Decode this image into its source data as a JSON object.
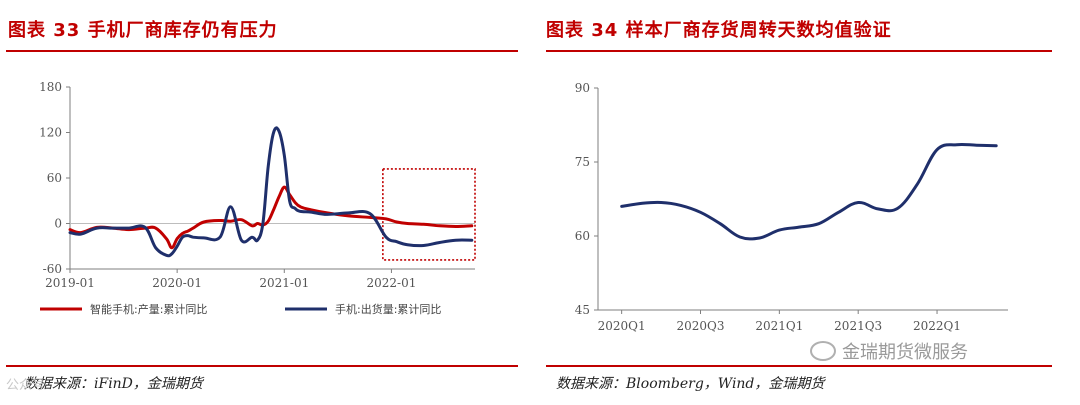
{
  "panels": {
    "left": {
      "title": "图表 33 手机厂商库存仍有压力",
      "source": "数据来源：iFinD，金瑞期货"
    },
    "right": {
      "title": "图表 34 样本厂商存货周转天数均值验证",
      "source": "数据来源：Bloomberg，Wind，金瑞期货"
    }
  },
  "watermark": {
    "text": "金瑞期货微服务",
    "left_text": "公众号"
  },
  "colors": {
    "red": "#c00000",
    "navy": "#1f2f6b",
    "axis": "#7f7f7f"
  },
  "chart_data": [
    {
      "type": "line",
      "title": "图表 33 手机厂商库存仍有压力",
      "x": [
        2019.0,
        2019.1,
        2019.25,
        2019.4,
        2019.55,
        2019.7,
        2019.8,
        2019.9,
        2019.95,
        2020.0,
        2020.05,
        2020.1,
        2020.15,
        2020.25,
        2020.4,
        2020.5,
        2020.6,
        2020.7,
        2020.75,
        2020.8,
        2020.85,
        2020.9,
        2020.95,
        2021.0,
        2021.05,
        2021.1,
        2021.15,
        2021.25,
        2021.4,
        2021.6,
        2021.8,
        2021.95,
        2022.05,
        2022.15,
        2022.3,
        2022.45,
        2022.6,
        2022.75
      ],
      "xlim": [
        2019.0,
        2022.78
      ],
      "xticks": [
        "2019-01",
        "2020-01",
        "2021-01",
        "2022-01"
      ],
      "xtick_positions": [
        2019.0,
        2020.0,
        2021.0,
        2022.0
      ],
      "ylim": [
        -60,
        180
      ],
      "yticks": [
        -60,
        0,
        60,
        120,
        180
      ],
      "series": [
        {
          "name": "智能手机:产量:累计同比",
          "color": "#c00000",
          "values": [
            -8,
            -12,
            -5,
            -6,
            -8,
            -6,
            -6,
            -20,
            -32,
            -20,
            -13,
            -10,
            -6,
            2,
            4,
            3,
            5,
            -3,
            0,
            -2,
            3,
            18,
            35,
            48,
            38,
            28,
            22,
            18,
            14,
            10,
            8,
            6,
            2,
            0,
            -1,
            -3,
            -4,
            -3
          ]
        },
        {
          "name": "手机:出货量:累计同比",
          "color": "#1f2f6b",
          "values": [
            -12,
            -14,
            -6,
            -6,
            -6,
            -5,
            -32,
            -42,
            -40,
            -30,
            -18,
            -16,
            -18,
            -19,
            -18,
            22,
            -22,
            -18,
            -22,
            0,
            75,
            120,
            122,
            90,
            30,
            20,
            16,
            15,
            12,
            14,
            13,
            -18,
            -24,
            -28,
            -29,
            -25,
            -22,
            -22
          ]
        }
      ],
      "legend_position": "bottom",
      "annotation": "dotted red box around 2022 period"
    },
    {
      "type": "line",
      "title": "图表 34 样本厂商存货周转天数均值验证",
      "categories": [
        "2020Q1",
        "2020Q3",
        "2021Q1",
        "2021Q3",
        "2022Q1"
      ],
      "x": [
        0,
        0.25,
        0.5,
        0.75,
        1.0,
        1.25,
        1.5,
        1.75,
        2.0,
        2.25,
        2.5,
        2.75,
        3.0,
        3.25,
        3.5,
        3.75,
        4.0,
        4.25,
        4.5,
        4.75
      ],
      "xlim": [
        -0.3,
        4.9
      ],
      "ylim": [
        45,
        90
      ],
      "yticks": [
        45,
        60,
        75,
        90
      ],
      "series": [
        {
          "name": "存货周转天数均值",
          "color": "#1f2f6b",
          "values": [
            66,
            66.6,
            66.8,
            66.2,
            64.8,
            62.5,
            59.8,
            59.6,
            61.2,
            61.8,
            62.5,
            64.8,
            66.8,
            65.5,
            65.6,
            70.5,
            77.5,
            78.5,
            78.4,
            78.3
          ]
        }
      ]
    }
  ]
}
